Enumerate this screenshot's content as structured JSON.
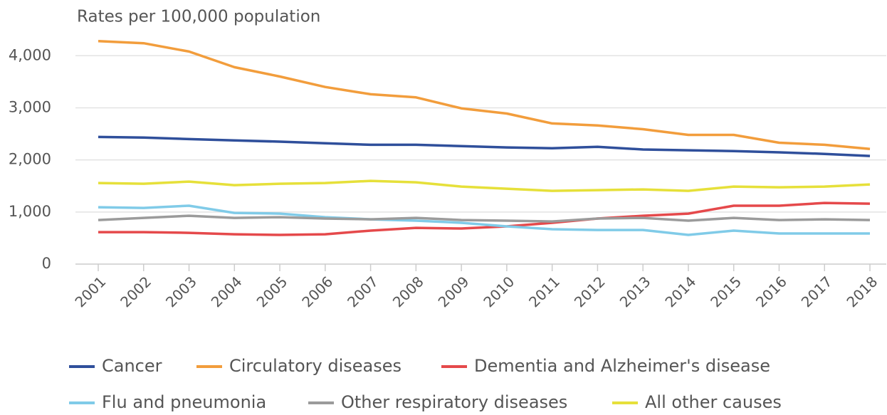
{
  "chart_data": {
    "type": "line",
    "title": "Rates per 100,000 population",
    "categories": [
      "2001",
      "2002",
      "2003",
      "2004",
      "2005",
      "2006",
      "2007",
      "2008",
      "2009",
      "2010",
      "2011",
      "2012",
      "2013",
      "2014",
      "2015",
      "2016",
      "2017",
      "2018"
    ],
    "series": [
      {
        "name": "Cancer",
        "color": "#2f4f9b",
        "values": [
          2440,
          2430,
          2400,
          2375,
          2350,
          2320,
          2290,
          2290,
          2265,
          2240,
          2225,
          2250,
          2200,
          2185,
          2170,
          2145,
          2115,
          2075
        ]
      },
      {
        "name": "Circulatory diseases",
        "color": "#f29d3c",
        "values": [
          4280,
          4240,
          4080,
          3780,
          3600,
          3400,
          3260,
          3200,
          2990,
          2890,
          2700,
          2660,
          2590,
          2480,
          2480,
          2330,
          2290,
          2210
        ]
      },
      {
        "name": "Dementia and Alzheimer's disease",
        "color": "#e5494b",
        "values": [
          614,
          614,
          600,
          573,
          560,
          573,
          642,
          696,
          683,
          724,
          792,
          874,
          928,
          969,
          1120,
          1120,
          1174,
          1160
        ]
      },
      {
        "name": "Flu and pneumonia",
        "color": "#80cbe8",
        "values": [
          1092,
          1078,
          1120,
          983,
          969,
          900,
          860,
          833,
          792,
          724,
          669,
          655,
          655,
          560,
          642,
          587,
          587,
          587
        ]
      },
      {
        "name": "Other respiratory diseases",
        "color": "#9b9b9b",
        "values": [
          846,
          887,
          928,
          887,
          900,
          874,
          860,
          887,
          846,
          833,
          819,
          874,
          887,
          833,
          887,
          846,
          860,
          846
        ]
      },
      {
        "name": "All other causes",
        "color": "#e6e03a",
        "values": [
          1556,
          1543,
          1584,
          1515,
          1543,
          1556,
          1597,
          1570,
          1488,
          1447,
          1406,
          1420,
          1433,
          1406,
          1488,
          1474,
          1488,
          1529
        ]
      }
    ],
    "ylim": [
      0,
      4400
    ],
    "yticks": [
      0,
      {
        "value": 1000,
        "label": "1,000"
      },
      {
        "value": 2000,
        "label": "2,000"
      },
      {
        "value": 3000,
        "label": "3,000"
      },
      {
        "value": 4000,
        "label": "4,000"
      }
    ],
    "grid": true
  }
}
